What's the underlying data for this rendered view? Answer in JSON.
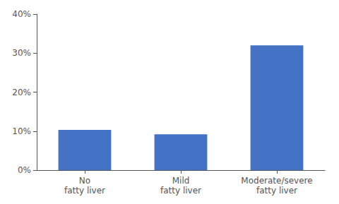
{
  "chart_data": {
    "type": "bar",
    "categories": [
      "No\nfatty liver",
      "Mild\nfatty liver",
      "Moderate/severe\nfatty liver"
    ],
    "values": [
      0.103,
      0.092,
      0.32
    ],
    "color": "#4472C4",
    "ylim": [
      0,
      0.4
    ],
    "yticks": [
      {
        "value": 0.0,
        "label": "0%"
      },
      {
        "value": 0.1,
        "label": "10%"
      },
      {
        "value": 0.2,
        "label": "20%"
      },
      {
        "value": 0.3,
        "label": "30%"
      },
      {
        "value": 0.4,
        "label": "40%"
      }
    ],
    "grid": false
  }
}
